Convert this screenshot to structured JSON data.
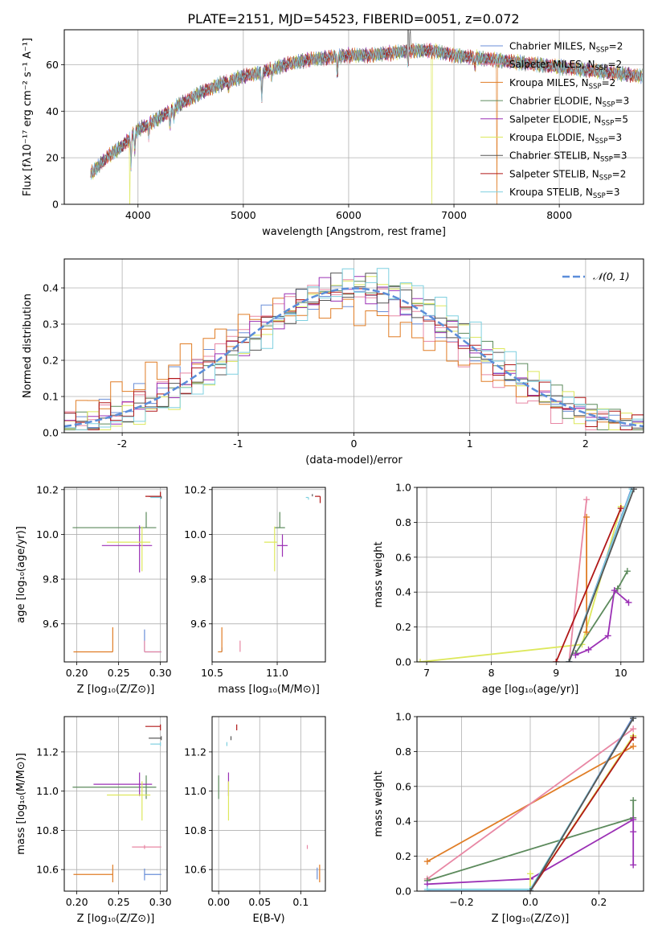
{
  "figure_title": "PLATE=2151, MJD=54523, FIBERID=0051, z=0.072",
  "models": [
    {
      "name": "Chabrier MILES",
      "nssp": "2",
      "color": "#6a8fd8"
    },
    {
      "name": "Salpeter MILES",
      "nssp": "2",
      "color": "#e887a4"
    },
    {
      "name": "Kroupa MILES",
      "nssp": "2",
      "color": "#e07d26"
    },
    {
      "name": "Chabrier ELODIE",
      "nssp": "3",
      "color": "#5c8a5c"
    },
    {
      "name": "Salpeter ELODIE",
      "nssp": "5",
      "color": "#9b30b5"
    },
    {
      "name": "Kroupa ELODIE",
      "nssp": "3",
      "color": "#dde85c"
    },
    {
      "name": "Chabrier STELIB",
      "nssp": "3",
      "color": "#555555"
    },
    {
      "name": "Salpeter STELIB",
      "nssp": "2",
      "color": "#b01818"
    },
    {
      "name": "Kroupa STELIB",
      "nssp": "3",
      "color": "#7fd0e0"
    }
  ],
  "chart_data": [
    {
      "id": "spectrum",
      "type": "line",
      "xlabel": "wavelength [Angstrom, rest frame]",
      "ylabel": "Flux [fλ10⁻¹⁷ erg cm⁻² s⁻¹ A⁻¹]",
      "xlim": [
        3300,
        8800
      ],
      "ylim": [
        0,
        75
      ],
      "xticks": [
        4000,
        5000,
        6000,
        7000,
        8000
      ],
      "yticks": [
        0,
        20,
        40,
        60
      ],
      "legend": "right",
      "continuum_x": [
        3550,
        3700,
        3850,
        4000,
        4200,
        4400,
        4600,
        4800,
        5000,
        5200,
        5400,
        5600,
        5800,
        6000,
        6200,
        6400,
        6600,
        6800,
        7000,
        7200,
        7400,
        7600,
        7800,
        8000,
        8200,
        8400,
        8600,
        8790
      ],
      "continuum_y": [
        13,
        20,
        25,
        32,
        37,
        43,
        48,
        52,
        55,
        57,
        60,
        62,
        63,
        64,
        64,
        65,
        66,
        66,
        64,
        63,
        62,
        61,
        60,
        59,
        58,
        57,
        56,
        55
      ],
      "absorption_lines": [
        [
          3934,
          12
        ],
        [
          3969,
          8
        ],
        [
          4102,
          5
        ],
        [
          4304,
          8
        ],
        [
          4340,
          5
        ],
        [
          4861,
          4
        ],
        [
          5175,
          12
        ],
        [
          5270,
          4
        ],
        [
          5893,
          10
        ],
        [
          6563,
          6
        ],
        [
          7200,
          4
        ]
      ],
      "emission_spikes": [
        [
          6563,
          15
        ],
        [
          6583,
          8
        ]
      ],
      "dropouts": [
        {
          "model": 5,
          "x": 3920
        },
        {
          "model": 5,
          "x": 6790
        },
        {
          "model": 2,
          "x": 7410
        }
      ]
    },
    {
      "id": "residuals",
      "type": "histogram",
      "xlabel": "(data-model)/error",
      "ylabel": "Normed distribution",
      "xlim": [
        -2.5,
        2.5
      ],
      "ylim": [
        0,
        0.48
      ],
      "xticks": [
        -2,
        -1,
        0,
        1,
        2
      ],
      "yticks": [
        0.0,
        0.1,
        0.2,
        0.3,
        0.4
      ],
      "reference": {
        "label": "𝒩(0, 1)",
        "color": "#5b8dd9",
        "mu": 0,
        "sigma": 1
      },
      "legend": "top-right",
      "bin_width": 0.1,
      "series_centers": [
        -0.1,
        -0.15,
        -0.3,
        0.05,
        0.0,
        0.1,
        0.05,
        0.0,
        0.15
      ],
      "series_sigmas": [
        1.05,
        1.0,
        1.15,
        1.0,
        1.0,
        0.95,
        0.98,
        1.02,
        0.95
      ]
    },
    {
      "id": "age_vs_Z",
      "type": "errorbar",
      "xlabel": "Z [log₁₀(Z/Z⊙)]",
      "ylabel": "age  [log₁₀(age/yr)]",
      "xlim": [
        0.185,
        0.308
      ],
      "ylim": [
        9.43,
        10.21
      ],
      "xticks": [
        0.2,
        0.25,
        0.3
      ],
      "yticks": [
        9.6,
        9.8,
        10.0,
        10.2
      ],
      "points": [
        {
          "model": 0,
          "x": 0.281,
          "y": 9.475,
          "xerr": [
            0.0,
            0.02
          ],
          "yerr": [
            0.0,
            0.1
          ]
        },
        {
          "model": 1,
          "x": 0.281,
          "y": 9.475,
          "xerr": [
            0.0,
            0.02
          ],
          "yerr": [
            0.0,
            0.05
          ]
        },
        {
          "model": 2,
          "x": 0.243,
          "y": 9.475,
          "xerr": [
            0.047,
            0.0
          ],
          "yerr": [
            0.0,
            0.11
          ]
        },
        {
          "model": 3,
          "x": 0.283,
          "y": 10.03,
          "xerr": [
            0.088,
            0.012
          ],
          "yerr": [
            0.0,
            0.07
          ]
        },
        {
          "model": 4,
          "x": 0.275,
          "y": 9.95,
          "xerr": [
            0.045,
            0.015
          ],
          "yerr": [
            0.12,
            0.09
          ]
        },
        {
          "model": 5,
          "x": 0.278,
          "y": 9.965,
          "xerr": [
            0.042,
            0.01
          ],
          "yerr": [
            0.13,
            0.07
          ]
        },
        {
          "model": 6,
          "x": 0.301,
          "y": 10.17,
          "xerr": [
            0.015,
            0.0
          ],
          "yerr": [
            0.01,
            0.0
          ]
        },
        {
          "model": 7,
          "x": 0.3,
          "y": 10.17,
          "xerr": [
            0.018,
            0.0
          ],
          "yerr": [
            0.0,
            0.02
          ]
        },
        {
          "model": 8,
          "x": 0.3,
          "y": 10.165,
          "xerr": [
            0.012,
            0.0
          ],
          "yerr": [
            0.01,
            0.0
          ]
        }
      ]
    },
    {
      "id": "age_vs_mass",
      "type": "errorbar",
      "xlabel": "mass [log₁₀(M/M⊙)]",
      "ylabel": "",
      "xlim": [
        10.5,
        11.37
      ],
      "ylim": [
        9.43,
        10.21
      ],
      "xticks": [
        10.5,
        11.0
      ],
      "yticks": [
        9.6,
        9.8,
        10.0,
        10.2
      ],
      "points": [
        {
          "model": 0,
          "x": 10.575,
          "y": 9.475,
          "xerr": [
            0.0,
            0.0
          ],
          "yerr": [
            0.0,
            0.02
          ]
        },
        {
          "model": 1,
          "x": 10.715,
          "y": 9.475,
          "xerr": [
            0.0,
            0.0
          ],
          "yerr": [
            0.0,
            0.05
          ]
        },
        {
          "model": 2,
          "x": 10.575,
          "y": 9.475,
          "xerr": [
            0.03,
            0.0
          ],
          "yerr": [
            0.0,
            0.11
          ]
        },
        {
          "model": 3,
          "x": 11.02,
          "y": 10.03,
          "xerr": [
            0.04,
            0.04
          ],
          "yerr": [
            0.0,
            0.07
          ]
        },
        {
          "model": 4,
          "x": 11.04,
          "y": 9.95,
          "xerr": [
            0.04,
            0.04
          ],
          "yerr": [
            0.05,
            0.05
          ]
        },
        {
          "model": 5,
          "x": 10.98,
          "y": 9.965,
          "xerr": [
            0.08,
            0.02
          ],
          "yerr": [
            0.13,
            0.07
          ]
        },
        {
          "model": 6,
          "x": 11.27,
          "y": 10.17,
          "xerr": [
            0.0,
            0.0
          ],
          "yerr": [
            0.0,
            0.01
          ]
        },
        {
          "model": 7,
          "x": 11.33,
          "y": 10.17,
          "xerr": [
            0.04,
            0.0
          ],
          "yerr": [
            0.03,
            0.0
          ]
        },
        {
          "model": 8,
          "x": 11.24,
          "y": 10.165,
          "xerr": [
            0.02,
            0.0
          ],
          "yerr": [
            0.01,
            0.0
          ]
        }
      ]
    },
    {
      "id": "weight_vs_age",
      "type": "line",
      "xlabel": "age  [log₁₀(age/yr)]",
      "ylabel": "mass weight",
      "xlim": [
        6.85,
        10.35
      ],
      "ylim": [
        0,
        1
      ],
      "xticks": [
        7,
        8,
        9,
        10
      ],
      "yticks": [
        0.0,
        0.2,
        0.4,
        0.6,
        0.8,
        1.0
      ],
      "series": [
        {
          "model": 5,
          "x": [
            6.9,
            9.4,
            10.0
          ],
          "y": [
            0.0,
            0.1,
            0.89
          ]
        },
        {
          "model": 3,
          "x": [
            9.3,
            9.95,
            10.1
          ],
          "y": [
            0.05,
            0.42,
            0.52
          ]
        },
        {
          "model": 4,
          "x": [
            9.3,
            9.5,
            9.8,
            9.9,
            10.12
          ],
          "y": [
            0.04,
            0.07,
            0.15,
            0.41,
            0.34
          ]
        },
        {
          "model": 1,
          "x": [
            9.2,
            9.47
          ],
          "y": [
            0.0,
            0.93
          ]
        },
        {
          "model": 2,
          "x": [
            9.47,
            9.47
          ],
          "y": [
            0.17,
            0.83
          ]
        },
        {
          "model": 7,
          "x": [
            9.0,
            10.0
          ],
          "y": [
            0.0,
            0.88
          ]
        },
        {
          "model": 0,
          "x": [
            9.2,
            10.17
          ],
          "y": [
            0.0,
            1.0
          ]
        },
        {
          "model": 8,
          "x": [
            9.2,
            10.17
          ],
          "y": [
            0.0,
            0.99
          ]
        },
        {
          "model": 6,
          "x": [
            9.2,
            10.2
          ],
          "y": [
            0.0,
            0.99
          ]
        }
      ]
    },
    {
      "id": "mass_vs_Z",
      "type": "errorbar",
      "xlabel": "Z [log₁₀(Z/Z⊙)]",
      "ylabel": "mass [log₁₀(M/M⊙)]",
      "xlim": [
        0.185,
        0.308
      ],
      "ylim": [
        10.49,
        11.38
      ],
      "xticks": [
        0.2,
        0.25,
        0.3
      ],
      "yticks": [
        10.6,
        10.8,
        11.0,
        11.2
      ],
      "points": [
        {
          "model": 0,
          "x": 0.281,
          "y": 10.575,
          "xerr": [
            0.0,
            0.02
          ],
          "yerr": [
            0.03,
            0.03
          ]
        },
        {
          "model": 1,
          "x": 0.281,
          "y": 10.715,
          "xerr": [
            0.015,
            0.02
          ],
          "yerr": [
            0.01,
            0.01
          ]
        },
        {
          "model": 2,
          "x": 0.243,
          "y": 10.575,
          "xerr": [
            0.047,
            0.0
          ],
          "yerr": [
            0.04,
            0.05
          ]
        },
        {
          "model": 3,
          "x": 0.283,
          "y": 11.02,
          "xerr": [
            0.088,
            0.012
          ],
          "yerr": [
            0.06,
            0.06
          ]
        },
        {
          "model": 4,
          "x": 0.275,
          "y": 11.035,
          "xerr": [
            0.055,
            0.015
          ],
          "yerr": [
            0.06,
            0.06
          ]
        },
        {
          "model": 5,
          "x": 0.278,
          "y": 10.98,
          "xerr": [
            0.042,
            0.01
          ],
          "yerr": [
            0.13,
            0.07
          ]
        },
        {
          "model": 6,
          "x": 0.301,
          "y": 11.27,
          "xerr": [
            0.015,
            0.0
          ],
          "yerr": [
            0.01,
            0.01
          ]
        },
        {
          "model": 7,
          "x": 0.3,
          "y": 11.33,
          "xerr": [
            0.018,
            0.0
          ],
          "yerr": [
            0.02,
            0.01
          ]
        },
        {
          "model": 8,
          "x": 0.3,
          "y": 11.24,
          "xerr": [
            0.012,
            0.0
          ],
          "yerr": [
            0.01,
            0.01
          ]
        }
      ]
    },
    {
      "id": "mass_vs_ebv",
      "type": "errorbar",
      "xlabel": "E(B-V)",
      "ylabel": "",
      "xlim": [
        -0.008,
        0.13
      ],
      "ylim": [
        10.49,
        11.38
      ],
      "xticks": [
        0.0,
        0.05,
        0.1
      ],
      "yticks": [
        10.6,
        10.8,
        11.0,
        11.2
      ],
      "points": [
        {
          "model": 0,
          "x": 0.12,
          "y": 10.58,
          "xerr": [
            0.0,
            0.0
          ],
          "yerr": [
            0.03,
            0.03
          ]
        },
        {
          "model": 1,
          "x": 0.108,
          "y": 10.715,
          "xerr": [
            0.0,
            0.0
          ],
          "yerr": [
            0.01,
            0.01
          ]
        },
        {
          "model": 2,
          "x": 0.123,
          "y": 10.575,
          "xerr": [
            0.0,
            0.0
          ],
          "yerr": [
            0.04,
            0.05
          ]
        },
        {
          "model": 3,
          "x": 0.0,
          "y": 11.02,
          "xerr": [
            0.0,
            0.0
          ],
          "yerr": [
            0.06,
            0.06
          ]
        },
        {
          "model": 4,
          "x": 0.012,
          "y": 11.035,
          "xerr": [
            0.0,
            0.0
          ],
          "yerr": [
            0.06,
            0.06
          ]
        },
        {
          "model": 5,
          "x": 0.012,
          "y": 10.98,
          "xerr": [
            0.0,
            0.0
          ],
          "yerr": [
            0.13,
            0.07
          ]
        },
        {
          "model": 6,
          "x": 0.015,
          "y": 11.27,
          "xerr": [
            0.0,
            0.0
          ],
          "yerr": [
            0.01,
            0.01
          ]
        },
        {
          "model": 7,
          "x": 0.022,
          "y": 11.33,
          "xerr": [
            0.0,
            0.0
          ],
          "yerr": [
            0.02,
            0.01
          ]
        },
        {
          "model": 8,
          "x": 0.01,
          "y": 11.24,
          "xerr": [
            0.0,
            0.0
          ],
          "yerr": [
            0.01,
            0.01
          ]
        }
      ]
    },
    {
      "id": "weight_vs_Z",
      "type": "line",
      "xlabel": "Z [log₁₀(Z/Z⊙)]",
      "ylabel": "mass weight",
      "xlim": [
        -0.33,
        0.33
      ],
      "ylim": [
        0,
        1
      ],
      "xticks": [
        -0.2,
        0.0,
        0.2
      ],
      "yticks": [
        0.0,
        0.2,
        0.4,
        0.6,
        0.8,
        1.0
      ],
      "series": [
        {
          "model": 2,
          "x": [
            -0.3,
            0.3
          ],
          "y": [
            0.17,
            0.83
          ]
        },
        {
          "model": 1,
          "x": [
            -0.3,
            0.3
          ],
          "y": [
            0.07,
            0.93
          ]
        },
        {
          "model": 3,
          "x": [
            -0.3,
            0.3,
            0.3
          ],
          "y": [
            0.06,
            0.42,
            0.52
          ]
        },
        {
          "model": 4,
          "x": [
            -0.3,
            0.0,
            0.3,
            0.3,
            0.3
          ],
          "y": [
            0.04,
            0.07,
            0.41,
            0.34,
            0.15
          ]
        },
        {
          "model": 5,
          "x": [
            0.0,
            0.0,
            0.3
          ],
          "y": [
            0.1,
            0.0,
            0.89
          ]
        },
        {
          "model": 7,
          "x": [
            0.0,
            0.3
          ],
          "y": [
            0.0,
            0.88
          ]
        },
        {
          "model": 0,
          "x": [
            -0.3,
            0.0,
            0.3
          ],
          "y": [
            0.0,
            0.0,
            1.0
          ]
        },
        {
          "model": 8,
          "x": [
            -0.3,
            0.0,
            0.3
          ],
          "y": [
            0.01,
            0.01,
            0.99
          ]
        },
        {
          "model": 6,
          "x": [
            0.0,
            0.3
          ],
          "y": [
            0.0,
            0.99
          ]
        }
      ]
    }
  ]
}
